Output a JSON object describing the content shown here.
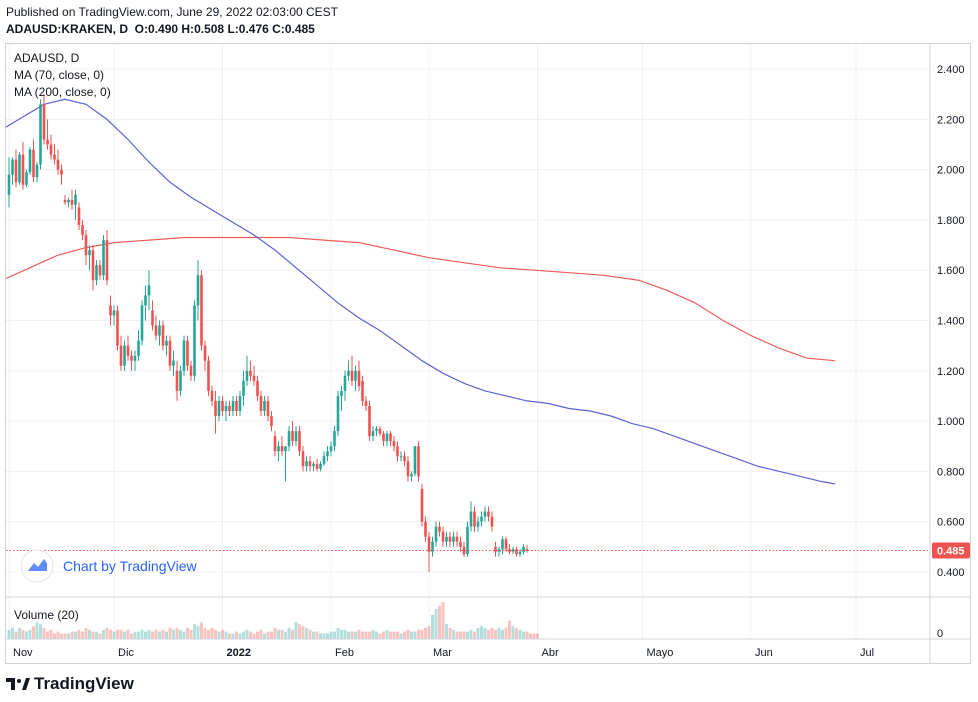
{
  "header": {
    "published": "Published on TradingView.com, June 29, 2022 02:03:00 CEST",
    "symbol": "ADAUSD:KRAKEN, D",
    "open_label": "O:",
    "open": "0.490",
    "high_label": "H:",
    "high": "0.508",
    "low_label": "L:",
    "low": "0.476",
    "close_label": "C:",
    "close": "0.485"
  },
  "legend": {
    "symbol": "ADAUSD, D",
    "ma70": "MA (70, close, 0)",
    "ma200": "MA (200, close, 0)",
    "volume": "Volume (20)"
  },
  "watermark": "Chart by TradingView",
  "brand": "TradingView",
  "colors": {
    "up": "#26a69a",
    "down": "#ef5350",
    "ma70": "#5b63d6",
    "ma200": "#ef5b5b",
    "price_line": "#ef5350",
    "grid": "#eef0f3",
    "text": "#131722"
  },
  "chart_data": {
    "type": "candlestick",
    "yaxis": {
      "min": 0.3,
      "max": 2.5,
      "ticks": [
        "2.400",
        "2.200",
        "2.000",
        "1.800",
        "1.600",
        "1.400",
        "1.200",
        "1.000",
        "0.800",
        "0.600",
        "0.400"
      ]
    },
    "xaxis_labels": [
      {
        "label": "Nov",
        "day": 0
      },
      {
        "label": "Dic",
        "day": 30
      },
      {
        "label": "2022",
        "day": 61
      },
      {
        "label": "Feb",
        "day": 92
      },
      {
        "label": "Mar",
        "day": 120
      },
      {
        "label": "Abr",
        "day": 151
      },
      {
        "label": "Mayo",
        "day": 181
      },
      {
        "label": "Jun",
        "day": 212
      },
      {
        "label": "Jul",
        "day": 242
      }
    ],
    "last_price": "0.485",
    "volume_axis_label": "0",
    "candles": [
      {
        "o": 1.9,
        "h": 2.05,
        "l": 1.85,
        "c": 1.98
      },
      {
        "o": 1.98,
        "h": 2.05,
        "l": 1.94,
        "c": 2.04
      },
      {
        "o": 2.04,
        "h": 2.08,
        "l": 1.93,
        "c": 1.95
      },
      {
        "o": 1.95,
        "h": 2.07,
        "l": 1.94,
        "c": 2.06
      },
      {
        "o": 2.06,
        "h": 2.11,
        "l": 1.92,
        "c": 1.94
      },
      {
        "o": 1.94,
        "h": 2.0,
        "l": 1.93,
        "c": 1.99
      },
      {
        "o": 1.99,
        "h": 2.09,
        "l": 1.98,
        "c": 2.08
      },
      {
        "o": 2.08,
        "h": 2.12,
        "l": 1.95,
        "c": 1.97
      },
      {
        "o": 1.97,
        "h": 2.03,
        "l": 1.95,
        "c": 2.02
      },
      {
        "o": 2.02,
        "h": 2.28,
        "l": 2.0,
        "c": 2.26
      },
      {
        "o": 2.26,
        "h": 2.3,
        "l": 2.1,
        "c": 2.12
      },
      {
        "o": 2.12,
        "h": 2.2,
        "l": 2.08,
        "c": 2.1
      },
      {
        "o": 2.1,
        "h": 2.14,
        "l": 2.04,
        "c": 2.06
      },
      {
        "o": 2.06,
        "h": 2.1,
        "l": 2.02,
        "c": 2.04
      },
      {
        "o": 2.04,
        "h": 2.08,
        "l": 1.98,
        "c": 2.0
      },
      {
        "o": 2.0,
        "h": 2.02,
        "l": 1.94,
        "c": 1.98
      },
      {
        "o": 1.88,
        "h": 1.9,
        "l": 1.86,
        "c": 1.87
      },
      {
        "o": 1.87,
        "h": 1.89,
        "l": 1.85,
        "c": 1.88
      },
      {
        "o": 1.88,
        "h": 1.92,
        "l": 1.84,
        "c": 1.86
      },
      {
        "o": 1.86,
        "h": 1.92,
        "l": 1.8,
        "c": 1.9
      },
      {
        "o": 1.85,
        "h": 1.87,
        "l": 1.76,
        "c": 1.78
      },
      {
        "o": 1.78,
        "h": 1.8,
        "l": 1.72,
        "c": 1.74
      },
      {
        "o": 1.74,
        "h": 1.76,
        "l": 1.62,
        "c": 1.66
      },
      {
        "o": 1.66,
        "h": 1.7,
        "l": 1.6,
        "c": 1.68
      },
      {
        "o": 1.68,
        "h": 1.7,
        "l": 1.52,
        "c": 1.56
      },
      {
        "o": 1.56,
        "h": 1.64,
        "l": 1.54,
        "c": 1.62
      },
      {
        "o": 1.62,
        "h": 1.64,
        "l": 1.56,
        "c": 1.58
      },
      {
        "o": 1.58,
        "h": 1.74,
        "l": 1.56,
        "c": 1.72
      },
      {
        "o": 1.72,
        "h": 1.76,
        "l": 1.54,
        "c": 1.56
      },
      {
        "o": 1.46,
        "h": 1.5,
        "l": 1.38,
        "c": 1.42
      },
      {
        "o": 1.42,
        "h": 1.46,
        "l": 1.38,
        "c": 1.44
      },
      {
        "o": 1.44,
        "h": 1.46,
        "l": 1.28,
        "c": 1.3
      },
      {
        "o": 1.3,
        "h": 1.34,
        "l": 1.2,
        "c": 1.22
      },
      {
        "o": 1.22,
        "h": 1.32,
        "l": 1.2,
        "c": 1.3
      },
      {
        "o": 1.3,
        "h": 1.34,
        "l": 1.24,
        "c": 1.26
      },
      {
        "o": 1.26,
        "h": 1.28,
        "l": 1.2,
        "c": 1.24
      },
      {
        "o": 1.24,
        "h": 1.28,
        "l": 1.2,
        "c": 1.26
      },
      {
        "o": 1.26,
        "h": 1.36,
        "l": 1.24,
        "c": 1.32
      },
      {
        "o": 1.32,
        "h": 1.48,
        "l": 1.3,
        "c": 1.46
      },
      {
        "o": 1.46,
        "h": 1.54,
        "l": 1.4,
        "c": 1.5
      },
      {
        "o": 1.5,
        "h": 1.6,
        "l": 1.44,
        "c": 1.54
      },
      {
        "o": 1.44,
        "h": 1.48,
        "l": 1.36,
        "c": 1.38
      },
      {
        "o": 1.38,
        "h": 1.42,
        "l": 1.32,
        "c": 1.34
      },
      {
        "o": 1.34,
        "h": 1.4,
        "l": 1.3,
        "c": 1.38
      },
      {
        "o": 1.38,
        "h": 1.4,
        "l": 1.28,
        "c": 1.3
      },
      {
        "o": 1.3,
        "h": 1.34,
        "l": 1.26,
        "c": 1.32
      },
      {
        "o": 1.32,
        "h": 1.34,
        "l": 1.2,
        "c": 1.22
      },
      {
        "o": 1.22,
        "h": 1.28,
        "l": 1.18,
        "c": 1.24
      },
      {
        "o": 1.2,
        "h": 1.24,
        "l": 1.08,
        "c": 1.12
      },
      {
        "o": 1.12,
        "h": 1.22,
        "l": 1.1,
        "c": 1.2
      },
      {
        "o": 1.2,
        "h": 1.34,
        "l": 1.18,
        "c": 1.32
      },
      {
        "o": 1.32,
        "h": 1.34,
        "l": 1.2,
        "c": 1.22
      },
      {
        "o": 1.22,
        "h": 1.24,
        "l": 1.16,
        "c": 1.18
      },
      {
        "o": 1.18,
        "h": 1.48,
        "l": 1.16,
        "c": 1.46
      },
      {
        "o": 1.46,
        "h": 1.64,
        "l": 1.4,
        "c": 1.58
      },
      {
        "o": 1.58,
        "h": 1.6,
        "l": 1.28,
        "c": 1.3
      },
      {
        "o": 1.3,
        "h": 1.32,
        "l": 1.2,
        "c": 1.24
      },
      {
        "o": 1.24,
        "h": 1.26,
        "l": 1.1,
        "c": 1.12
      },
      {
        "o": 1.12,
        "h": 1.14,
        "l": 1.06,
        "c": 1.08
      },
      {
        "o": 1.08,
        "h": 1.12,
        "l": 0.95,
        "c": 1.02
      },
      {
        "o": 1.02,
        "h": 1.1,
        "l": 1.0,
        "c": 1.08
      },
      {
        "o": 1.08,
        "h": 1.1,
        "l": 1.02,
        "c": 1.04
      },
      {
        "o": 1.04,
        "h": 1.08,
        "l": 1.0,
        "c": 1.06
      },
      {
        "o": 1.06,
        "h": 1.08,
        "l": 1.02,
        "c": 1.04
      },
      {
        "o": 1.04,
        "h": 1.1,
        "l": 1.02,
        "c": 1.08
      },
      {
        "o": 1.08,
        "h": 1.1,
        "l": 1.02,
        "c": 1.04
      },
      {
        "o": 1.04,
        "h": 1.12,
        "l": 1.02,
        "c": 1.1
      },
      {
        "o": 1.1,
        "h": 1.2,
        "l": 1.06,
        "c": 1.16
      },
      {
        "o": 1.16,
        "h": 1.26,
        "l": 1.14,
        "c": 1.2
      },
      {
        "o": 1.2,
        "h": 1.24,
        "l": 1.16,
        "c": 1.18
      },
      {
        "o": 1.18,
        "h": 1.22,
        "l": 1.14,
        "c": 1.16
      },
      {
        "o": 1.16,
        "h": 1.18,
        "l": 1.08,
        "c": 1.1
      },
      {
        "o": 1.1,
        "h": 1.12,
        "l": 1.02,
        "c": 1.04
      },
      {
        "o": 1.04,
        "h": 1.1,
        "l": 1.02,
        "c": 1.08
      },
      {
        "o": 1.08,
        "h": 1.1,
        "l": 1.0,
        "c": 1.02
      },
      {
        "o": 1.02,
        "h": 1.04,
        "l": 0.96,
        "c": 0.98
      },
      {
        "o": 0.94,
        "h": 0.96,
        "l": 0.86,
        "c": 0.88
      },
      {
        "o": 0.88,
        "h": 0.92,
        "l": 0.84,
        "c": 0.9
      },
      {
        "o": 0.9,
        "h": 0.94,
        "l": 0.86,
        "c": 0.88
      },
      {
        "o": 0.88,
        "h": 0.9,
        "l": 0.76,
        "c": 0.9
      },
      {
        "o": 0.9,
        "h": 0.98,
        "l": 0.88,
        "c": 0.96
      },
      {
        "o": 0.96,
        "h": 1.0,
        "l": 0.9,
        "c": 0.92
      },
      {
        "o": 0.92,
        "h": 0.98,
        "l": 0.9,
        "c": 0.96
      },
      {
        "o": 0.96,
        "h": 0.98,
        "l": 0.86,
        "c": 0.88
      },
      {
        "o": 0.88,
        "h": 0.9,
        "l": 0.8,
        "c": 0.82
      },
      {
        "o": 0.82,
        "h": 0.86,
        "l": 0.8,
        "c": 0.84
      },
      {
        "o": 0.84,
        "h": 0.86,
        "l": 0.8,
        "c": 0.82
      },
      {
        "o": 0.82,
        "h": 0.84,
        "l": 0.8,
        "c": 0.83
      },
      {
        "o": 0.83,
        "h": 0.85,
        "l": 0.8,
        "c": 0.81
      },
      {
        "o": 0.81,
        "h": 0.84,
        "l": 0.8,
        "c": 0.83
      },
      {
        "o": 0.83,
        "h": 0.88,
        "l": 0.82,
        "c": 0.86
      },
      {
        "o": 0.86,
        "h": 0.9,
        "l": 0.84,
        "c": 0.88
      },
      {
        "o": 0.88,
        "h": 0.92,
        "l": 0.86,
        "c": 0.9
      },
      {
        "o": 0.9,
        "h": 0.98,
        "l": 0.88,
        "c": 0.96
      },
      {
        "o": 0.96,
        "h": 1.12,
        "l": 0.94,
        "c": 1.1
      },
      {
        "o": 1.1,
        "h": 1.14,
        "l": 1.04,
        "c": 1.12
      },
      {
        "o": 1.12,
        "h": 1.2,
        "l": 1.08,
        "c": 1.18
      },
      {
        "o": 1.18,
        "h": 1.24,
        "l": 1.16,
        "c": 1.2
      },
      {
        "o": 1.2,
        "h": 1.26,
        "l": 1.14,
        "c": 1.16
      },
      {
        "o": 1.16,
        "h": 1.22,
        "l": 1.12,
        "c": 1.2
      },
      {
        "o": 1.2,
        "h": 1.24,
        "l": 1.12,
        "c": 1.14
      },
      {
        "o": 1.16,
        "h": 1.18,
        "l": 1.06,
        "c": 1.08
      },
      {
        "o": 1.08,
        "h": 1.1,
        "l": 1.04,
        "c": 1.06
      },
      {
        "o": 1.06,
        "h": 1.08,
        "l": 0.92,
        "c": 0.94
      },
      {
        "o": 0.94,
        "h": 0.98,
        "l": 0.92,
        "c": 0.96
      },
      {
        "o": 0.96,
        "h": 0.98,
        "l": 0.94,
        "c": 0.97
      },
      {
        "o": 0.97,
        "h": 0.98,
        "l": 0.94,
        "c": 0.95
      },
      {
        "o": 0.95,
        "h": 0.96,
        "l": 0.9,
        "c": 0.92
      },
      {
        "o": 0.92,
        "h": 0.96,
        "l": 0.9,
        "c": 0.95
      },
      {
        "o": 0.95,
        "h": 0.96,
        "l": 0.9,
        "c": 0.92
      },
      {
        "o": 0.92,
        "h": 0.94,
        "l": 0.88,
        "c": 0.9
      },
      {
        "o": 0.9,
        "h": 0.92,
        "l": 0.84,
        "c": 0.86
      },
      {
        "o": 0.86,
        "h": 0.88,
        "l": 0.84,
        "c": 0.86
      },
      {
        "o": 0.86,
        "h": 0.88,
        "l": 0.82,
        "c": 0.84
      },
      {
        "o": 0.84,
        "h": 0.86,
        "l": 0.76,
        "c": 0.78
      },
      {
        "o": 0.78,
        "h": 0.8,
        "l": 0.76,
        "c": 0.79
      },
      {
        "o": 0.79,
        "h": 0.9,
        "l": 0.78,
        "c": 0.9
      },
      {
        "o": 0.9,
        "h": 0.92,
        "l": 0.76,
        "c": 0.78
      },
      {
        "o": 0.73,
        "h": 0.75,
        "l": 0.58,
        "c": 0.6
      },
      {
        "o": 0.6,
        "h": 0.62,
        "l": 0.52,
        "c": 0.54
      },
      {
        "o": 0.54,
        "h": 0.56,
        "l": 0.4,
        "c": 0.48
      },
      {
        "o": 0.48,
        "h": 0.54,
        "l": 0.46,
        "c": 0.52
      },
      {
        "o": 0.52,
        "h": 0.6,
        "l": 0.5,
        "c": 0.58
      },
      {
        "o": 0.58,
        "h": 0.6,
        "l": 0.54,
        "c": 0.56
      },
      {
        "o": 0.56,
        "h": 0.58,
        "l": 0.5,
        "c": 0.52
      },
      {
        "o": 0.52,
        "h": 0.56,
        "l": 0.5,
        "c": 0.54
      },
      {
        "o": 0.54,
        "h": 0.56,
        "l": 0.5,
        "c": 0.52
      },
      {
        "o": 0.52,
        "h": 0.56,
        "l": 0.5,
        "c": 0.54
      },
      {
        "o": 0.54,
        "h": 0.56,
        "l": 0.5,
        "c": 0.52
      },
      {
        "o": 0.52,
        "h": 0.54,
        "l": 0.48,
        "c": 0.5
      },
      {
        "o": 0.5,
        "h": 0.52,
        "l": 0.46,
        "c": 0.47
      },
      {
        "o": 0.47,
        "h": 0.6,
        "l": 0.46,
        "c": 0.58
      },
      {
        "o": 0.58,
        "h": 0.68,
        "l": 0.56,
        "c": 0.64
      },
      {
        "o": 0.64,
        "h": 0.66,
        "l": 0.56,
        "c": 0.58
      },
      {
        "o": 0.58,
        "h": 0.62,
        "l": 0.56,
        "c": 0.6
      },
      {
        "o": 0.6,
        "h": 0.64,
        "l": 0.58,
        "c": 0.62
      },
      {
        "o": 0.62,
        "h": 0.66,
        "l": 0.6,
        "c": 0.64
      },
      {
        "o": 0.64,
        "h": 0.66,
        "l": 0.6,
        "c": 0.62
      },
      {
        "o": 0.62,
        "h": 0.64,
        "l": 0.56,
        "c": 0.58
      },
      {
        "o": 0.5,
        "h": 0.52,
        "l": 0.46,
        "c": 0.48
      },
      {
        "o": 0.48,
        "h": 0.5,
        "l": 0.46,
        "c": 0.49
      },
      {
        "o": 0.49,
        "h": 0.54,
        "l": 0.47,
        "c": 0.53
      },
      {
        "o": 0.53,
        "h": 0.54,
        "l": 0.48,
        "c": 0.49
      },
      {
        "o": 0.49,
        "h": 0.51,
        "l": 0.47,
        "c": 0.48
      },
      {
        "o": 0.48,
        "h": 0.5,
        "l": 0.47,
        "c": 0.49
      },
      {
        "o": 0.49,
        "h": 0.5,
        "l": 0.46,
        "c": 0.47
      },
      {
        "o": 0.47,
        "h": 0.49,
        "l": 0.46,
        "c": 0.48
      },
      {
        "o": 0.48,
        "h": 0.51,
        "l": 0.47,
        "c": 0.5
      },
      {
        "o": 0.49,
        "h": 0.508,
        "l": 0.476,
        "c": 0.485
      }
    ],
    "ma70": [
      [
        -2,
        2.16
      ],
      [
        4,
        2.21
      ],
      [
        10,
        2.26
      ],
      [
        16,
        2.28
      ],
      [
        22,
        2.26
      ],
      [
        28,
        2.2
      ],
      [
        34,
        2.12
      ],
      [
        40,
        2.03
      ],
      [
        46,
        1.95
      ],
      [
        52,
        1.89
      ],
      [
        58,
        1.84
      ],
      [
        64,
        1.79
      ],
      [
        70,
        1.74
      ],
      [
        76,
        1.68
      ],
      [
        82,
        1.61
      ],
      [
        88,
        1.54
      ],
      [
        94,
        1.47
      ],
      [
        100,
        1.41
      ],
      [
        106,
        1.36
      ],
      [
        112,
        1.3
      ],
      [
        118,
        1.24
      ],
      [
        124,
        1.19
      ],
      [
        130,
        1.15
      ],
      [
        136,
        1.12
      ],
      [
        142,
        1.1
      ],
      [
        148,
        1.08
      ],
      [
        154,
        1.07
      ],
      [
        160,
        1.05
      ],
      [
        166,
        1.04
      ],
      [
        172,
        1.02
      ],
      [
        178,
        0.99
      ],
      [
        184,
        0.97
      ],
      [
        190,
        0.94
      ],
      [
        196,
        0.91
      ],
      [
        202,
        0.88
      ],
      [
        208,
        0.85
      ],
      [
        214,
        0.82
      ],
      [
        220,
        0.8
      ],
      [
        226,
        0.78
      ],
      [
        232,
        0.76
      ],
      [
        236,
        0.75
      ]
    ],
    "ma200": [
      [
        -2,
        1.56
      ],
      [
        6,
        1.61
      ],
      [
        14,
        1.66
      ],
      [
        22,
        1.69
      ],
      [
        30,
        1.71
      ],
      [
        40,
        1.72
      ],
      [
        50,
        1.73
      ],
      [
        60,
        1.73
      ],
      [
        70,
        1.73
      ],
      [
        80,
        1.73
      ],
      [
        90,
        1.72
      ],
      [
        100,
        1.71
      ],
      [
        110,
        1.68
      ],
      [
        120,
        1.65
      ],
      [
        130,
        1.63
      ],
      [
        140,
        1.61
      ],
      [
        150,
        1.6
      ],
      [
        160,
        1.59
      ],
      [
        170,
        1.58
      ],
      [
        180,
        1.56
      ],
      [
        188,
        1.52
      ],
      [
        196,
        1.47
      ],
      [
        204,
        1.4
      ],
      [
        212,
        1.34
      ],
      [
        220,
        1.29
      ],
      [
        228,
        1.25
      ],
      [
        236,
        1.24
      ]
    ],
    "volume": [
      0.5,
      0.6,
      0.4,
      0.6,
      0.5,
      0.4,
      0.5,
      0.7,
      0.9,
      0.8,
      0.6,
      0.4,
      0.5,
      0.3,
      0.4,
      0.3,
      0.3,
      0.3,
      0.4,
      0.4,
      0.5,
      0.4,
      0.6,
      0.5,
      0.4,
      0.4,
      0.3,
      0.5,
      0.6,
      0.5,
      0.4,
      0.5,
      0.5,
      0.4,
      0.5,
      0.3,
      0.4,
      0.4,
      0.5,
      0.4,
      0.5,
      0.4,
      0.5,
      0.4,
      0.5,
      0.4,
      0.6,
      0.5,
      0.6,
      0.5,
      0.4,
      0.6,
      0.5,
      0.8,
      0.7,
      0.9,
      0.6,
      0.5,
      0.6,
      0.5,
      0.4,
      0.5,
      0.4,
      0.3,
      0.3,
      0.4,
      0.3,
      0.4,
      0.5,
      0.4,
      0.3,
      0.4,
      0.5,
      0.3,
      0.4,
      0.4,
      0.6,
      0.5,
      0.5,
      0.4,
      0.6,
      0.5,
      0.9,
      0.8,
      0.7,
      0.6,
      0.5,
      0.4,
      0.4,
      0.3,
      0.3,
      0.3,
      0.4,
      0.4,
      0.6,
      0.5,
      0.5,
      0.4,
      0.4,
      0.4,
      0.5,
      0.4,
      0.4,
      0.4,
      0.5,
      0.4,
      0.3,
      0.4,
      0.5,
      0.4,
      0.4,
      0.4,
      0.3,
      0.4,
      0.5,
      0.4,
      0.4,
      0.5,
      0.5,
      0.6,
      0.7,
      1.3,
      1.6,
      1.8,
      2.0,
      0.8,
      0.6,
      0.5,
      0.4,
      0.4,
      0.4,
      0.4,
      0.5,
      0.4,
      0.6,
      0.7,
      0.6,
      0.5,
      0.6,
      0.5,
      0.6,
      0.5,
      0.6,
      1.0,
      0.7,
      0.6,
      0.5,
      0.4,
      0.4,
      0.3,
      0.3,
      0.3
    ]
  }
}
